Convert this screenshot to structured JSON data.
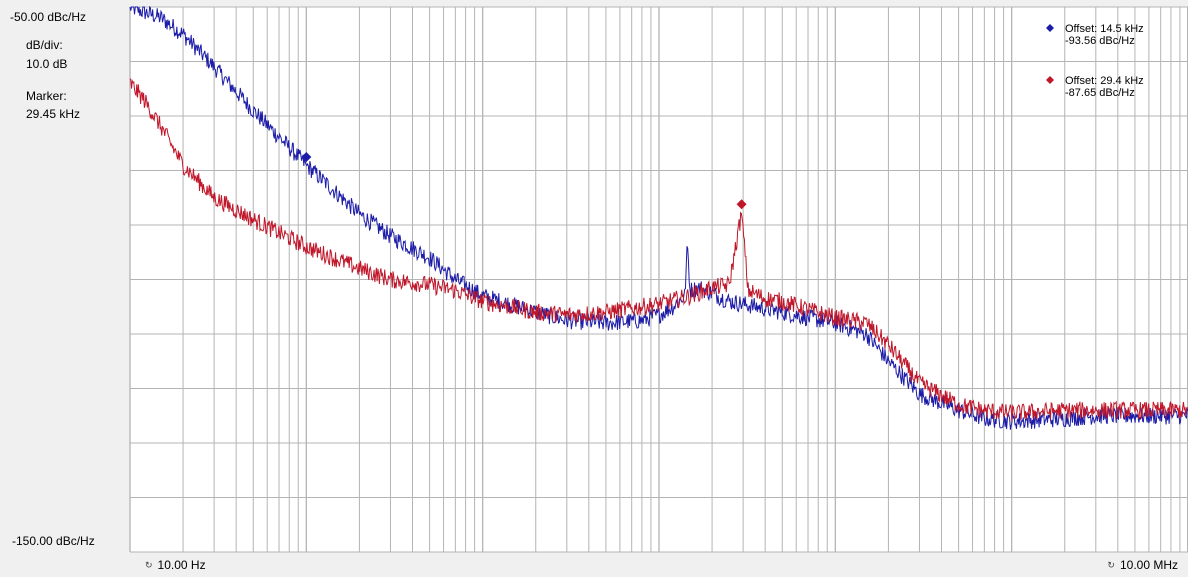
{
  "left_panel": {
    "top_reference": "-50.00 dBc/Hz",
    "db_div_label": "dB/div:",
    "db_div_value": "10.0 dB",
    "marker_label": "Marker:",
    "marker_value": "29.45 kHz",
    "bottom_reference": "-150.00 dBc/Hz"
  },
  "x_axis": {
    "start_label": "10.00 Hz",
    "end_label": "10.00 MHz",
    "start_icon": "reset-circle-icon",
    "end_icon": "reset-circle-icon"
  },
  "colors": {
    "background": "#ffffff",
    "grid": "#b4b4b4",
    "blue_trace": "#1c1ca8",
    "red_trace": "#c0162a"
  },
  "markers": [
    {
      "color": "#1c1ca8",
      "line1": "Offset: 14.5 kHz",
      "line2": "-93.56 dBc/Hz",
      "icon": "diamond-icon"
    },
    {
      "color": "#c0162a",
      "line1": "Offset: 29.4 kHz",
      "line2": "-87.65 dBc/Hz",
      "icon": "diamond-icon"
    }
  ],
  "chart_data": {
    "type": "line",
    "xscale": "log",
    "xlim": [
      10,
      10000000
    ],
    "ylim": [
      -150,
      -50
    ],
    "y_div": 10,
    "grid": true,
    "legend_placement": "top-right",
    "series": [
      {
        "color": "#1c1ca8",
        "x": [
          10,
          15,
          20,
          30,
          50,
          100,
          200,
          300,
          500,
          700,
          1000,
          2000,
          3000,
          5000,
          8000,
          10000,
          12000,
          14000,
          14500,
          15000,
          17000,
          20000,
          25000,
          30000,
          50000,
          70000,
          100000,
          150000,
          200000,
          300000,
          500000,
          700000,
          1000000,
          2000000,
          3000000,
          5000000,
          10000000
        ],
        "y": [
          -50,
          -52,
          -55,
          -61,
          -69,
          -79,
          -88,
          -92,
          -96,
          -100,
          -103,
          -106,
          -107.5,
          -108,
          -107.5,
          -106.5,
          -105,
          -103,
          -93.56,
          -102,
          -101.5,
          -102.5,
          -104,
          -104.5,
          -106,
          -107,
          -108,
          -110,
          -115,
          -121,
          -124,
          -125.5,
          -126,
          -125.5,
          -125,
          -125,
          -125
        ]
      },
      {
        "color": "#c0162a",
        "x": [
          10,
          12,
          15,
          20,
          30,
          50,
          100,
          200,
          300,
          500,
          700,
          1000,
          2000,
          3000,
          5000,
          8000,
          10000,
          15000,
          20000,
          25000,
          29400,
          32000,
          40000,
          50000,
          70000,
          100000,
          150000,
          200000,
          300000,
          500000,
          700000,
          1000000,
          2000000,
          3000000,
          5000000,
          10000000
        ],
        "y": [
          -64,
          -67,
          -72,
          -79,
          -85,
          -89,
          -94,
          -98,
          -100,
          -101,
          -102,
          -104,
          -106,
          -106.5,
          -106,
          -105,
          -104.5,
          -103,
          -101.5,
          -101,
          -87.65,
          -102,
          -103.5,
          -104,
          -105.5,
          -107,
          -108,
          -112,
          -119,
          -123,
          -124,
          -124.5,
          -124,
          -124,
          -124,
          -124
        ]
      }
    ]
  }
}
